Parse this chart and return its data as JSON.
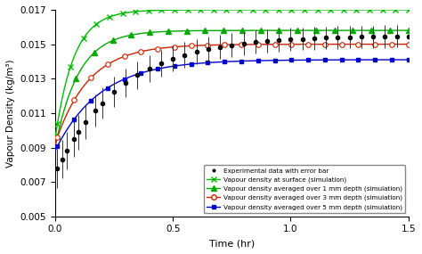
{
  "title": "",
  "xlabel": "Time (hr)",
  "ylabel": "Vapour Density (kg/m³)",
  "xlim": [
    0,
    1.5
  ],
  "ylim": [
    0.005,
    0.017
  ],
  "yticks": [
    0.005,
    0.007,
    0.009,
    0.011,
    0.013,
    0.015,
    0.017
  ],
  "xticks": [
    0,
    0.5,
    1.0,
    1.5
  ],
  "legend_labels": [
    "Experimental data with error bar",
    "Vapour density at surface (simulation)",
    "Vapour density averaged over 1 mm depth (simulation)",
    "Vapour density averaged over 3 mm depth (simulation)",
    "Vapour density averaged over 5 mm depth (simulation)"
  ],
  "exp_color": "#000000",
  "surface_color": "#00aa00",
  "avg1mm_color": "#00aa00",
  "avg3mm_color": "#dd2222",
  "avg5mm_color": "#0000dd",
  "background_color": "#ffffff"
}
